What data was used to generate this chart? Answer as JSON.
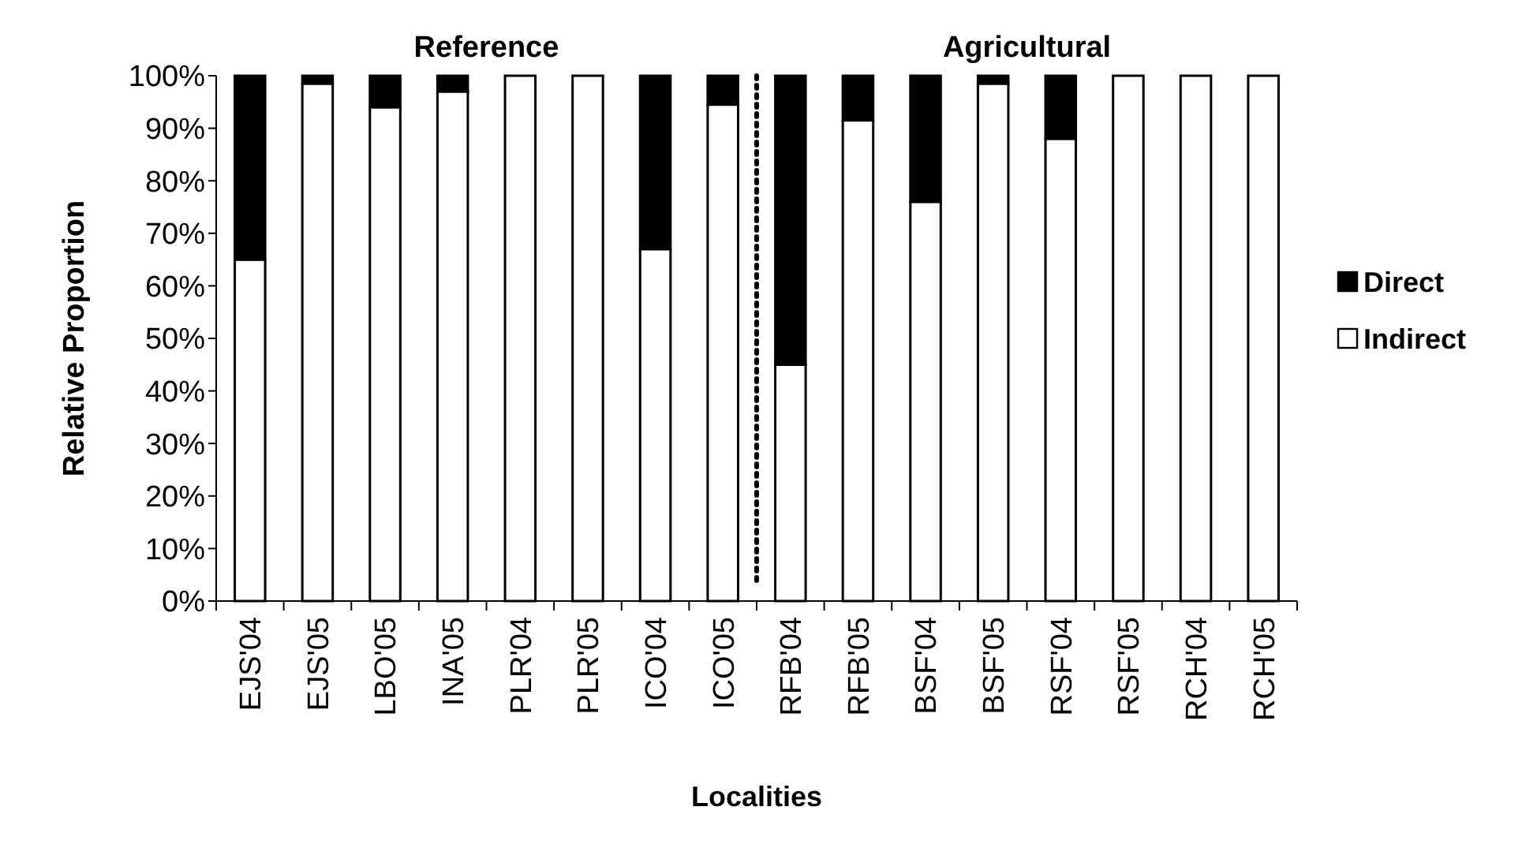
{
  "chart_data": {
    "type": "bar",
    "stacked": true,
    "xlabel": "Localities",
    "ylabel": "Relative Proportion",
    "categories": [
      "EJS'04",
      "EJS'05",
      "LBO'05",
      "INA'05",
      "PLR'04",
      "PLR'05",
      "ICO'04",
      "ICO'05",
      "RFB'04",
      "RFB'05",
      "BSF'04",
      "BSF'05",
      "RSF'04",
      "RSF'05",
      "RCH'04",
      "RCH'05"
    ],
    "series": [
      {
        "name": "Indirect",
        "color": "#ffffff",
        "values": [
          65,
          98.5,
          94,
          97,
          100,
          100,
          67,
          94.5,
          45,
          91.5,
          76,
          98.5,
          88,
          100,
          100,
          100
        ]
      },
      {
        "name": "Direct",
        "color": "#000000",
        "values": [
          35,
          1.5,
          6,
          3,
          0,
          0,
          33,
          5.5,
          55,
          8.5,
          24,
          1.5,
          12,
          0,
          0,
          0
        ]
      }
    ],
    "ylim": [
      0,
      100
    ],
    "yticks": [
      {
        "value": 0,
        "label": "0%"
      },
      {
        "value": 10,
        "label": "10%"
      },
      {
        "value": 20,
        "label": "20%"
      },
      {
        "value": 30,
        "label": "30%"
      },
      {
        "value": 40,
        "label": "40%"
      },
      {
        "value": 50,
        "label": "50%"
      },
      {
        "value": 60,
        "label": "60%"
      },
      {
        "value": 70,
        "label": "70%"
      },
      {
        "value": 80,
        "label": "80%"
      },
      {
        "value": 90,
        "label": "90%"
      },
      {
        "value": 100,
        "label": "100%"
      }
    ],
    "annotations": [
      "Reference",
      "Agricultural"
    ],
    "grid": false,
    "legend": "right"
  }
}
